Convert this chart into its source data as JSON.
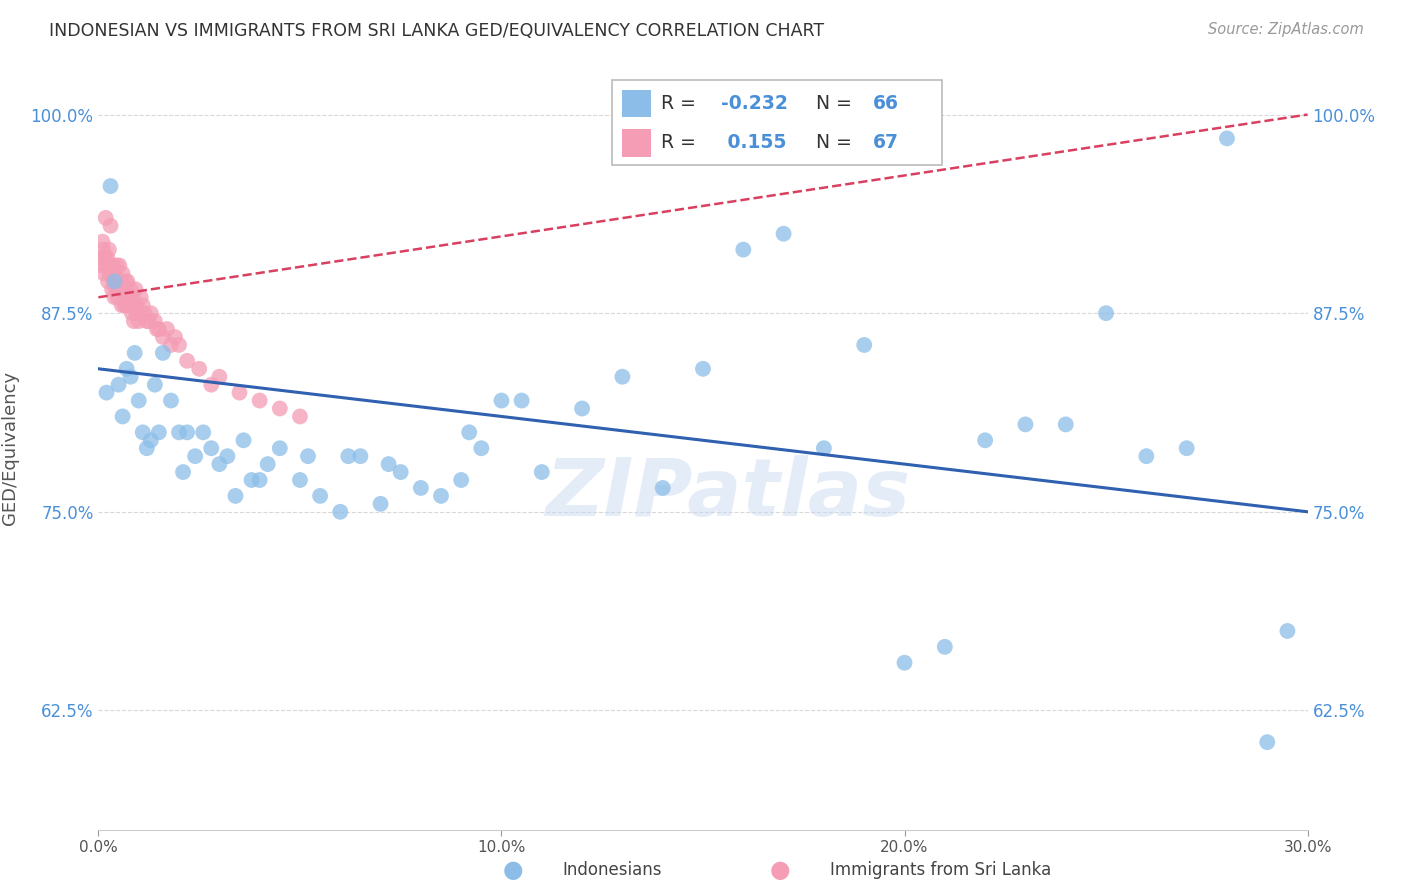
{
  "title": "INDONESIAN VS IMMIGRANTS FROM SRI LANKA GED/EQUIVALENCY CORRELATION CHART",
  "source": "Source: ZipAtlas.com",
  "ylabel": "GED/Equivalency",
  "xlabel_indonesian": "Indonesians",
  "xlabel_srilanka": "Immigrants from Sri Lanka",
  "watermark": "ZIPatlas",
  "xlim": [
    0.0,
    30.0
  ],
  "ylim": [
    55.0,
    103.0
  ],
  "y_ticks": [
    62.5,
    75.0,
    87.5,
    100.0
  ],
  "blue_R": -0.232,
  "blue_N": 66,
  "pink_R": 0.155,
  "pink_N": 67,
  "blue_color": "#8bbde8",
  "pink_color": "#f49db5",
  "blue_line_color": "#3060b0",
  "pink_line_color": "#d94060",
  "legend_border_color": "#bbbbbb",
  "grid_color": "#d8d8d8",
  "blue_line_x0": 0.0,
  "blue_line_y0": 84.0,
  "blue_line_x1": 30.0,
  "blue_line_y1": 75.0,
  "pink_line_x0": 0.0,
  "pink_line_y0": 88.5,
  "pink_line_x1": 30.0,
  "pink_line_y1": 100.0,
  "blue_x": [
    0.2,
    0.3,
    0.5,
    0.6,
    0.7,
    0.8,
    0.9,
    1.0,
    1.1,
    1.2,
    1.4,
    1.5,
    1.6,
    1.8,
    2.0,
    2.2,
    2.4,
    2.6,
    2.8,
    3.0,
    3.2,
    3.4,
    3.6,
    3.8,
    4.0,
    4.5,
    5.0,
    5.5,
    6.0,
    6.5,
    7.0,
    7.5,
    8.0,
    8.5,
    9.0,
    9.5,
    10.0,
    10.5,
    11.0,
    12.0,
    13.0,
    14.0,
    15.0,
    16.0,
    17.0,
    18.0,
    20.0,
    21.0,
    22.0,
    24.0,
    25.0,
    26.0,
    27.0,
    28.0,
    29.0,
    0.4,
    1.3,
    2.1,
    4.2,
    5.2,
    6.2,
    7.2,
    9.2,
    19.0,
    23.0,
    29.5
  ],
  "blue_y": [
    82.5,
    95.5,
    83.0,
    81.0,
    84.0,
    83.5,
    85.0,
    82.0,
    80.0,
    79.0,
    83.0,
    80.0,
    85.0,
    82.0,
    80.0,
    80.0,
    78.5,
    80.0,
    79.0,
    78.0,
    78.5,
    76.0,
    79.5,
    77.0,
    77.0,
    79.0,
    77.0,
    76.0,
    75.0,
    78.5,
    75.5,
    77.5,
    76.5,
    76.0,
    77.0,
    79.0,
    82.0,
    82.0,
    77.5,
    81.5,
    83.5,
    76.5,
    84.0,
    91.5,
    92.5,
    79.0,
    65.5,
    66.5,
    79.5,
    80.5,
    87.5,
    78.5,
    79.0,
    98.5,
    60.5,
    89.5,
    79.5,
    77.5,
    78.0,
    78.5,
    78.5,
    78.0,
    80.0,
    85.5,
    80.5,
    67.5
  ],
  "pink_x": [
    0.05,
    0.08,
    0.1,
    0.12,
    0.14,
    0.16,
    0.18,
    0.2,
    0.22,
    0.24,
    0.26,
    0.28,
    0.3,
    0.32,
    0.34,
    0.36,
    0.38,
    0.4,
    0.42,
    0.44,
    0.46,
    0.48,
    0.5,
    0.52,
    0.55,
    0.58,
    0.6,
    0.63,
    0.65,
    0.68,
    0.7,
    0.72,
    0.75,
    0.78,
    0.8,
    0.83,
    0.85,
    0.88,
    0.9,
    0.92,
    0.95,
    1.0,
    1.05,
    1.1,
    1.15,
    1.2,
    1.3,
    1.4,
    1.5,
    1.6,
    1.7,
    1.8,
    1.9,
    2.0,
    2.2,
    2.5,
    2.8,
    3.0,
    3.5,
    4.0,
    4.5,
    5.0,
    1.25,
    0.56,
    0.74,
    0.95,
    1.45
  ],
  "pink_y": [
    91.0,
    90.5,
    92.0,
    91.5,
    90.0,
    91.0,
    93.5,
    90.5,
    91.0,
    89.5,
    91.5,
    90.0,
    93.0,
    90.0,
    89.0,
    90.5,
    89.5,
    88.5,
    90.0,
    89.0,
    90.5,
    88.5,
    89.0,
    90.5,
    89.5,
    88.0,
    90.0,
    89.0,
    88.0,
    89.5,
    88.0,
    89.5,
    88.5,
    88.0,
    89.0,
    87.5,
    88.5,
    87.0,
    88.0,
    89.0,
    87.5,
    87.0,
    88.5,
    88.0,
    87.5,
    87.0,
    87.5,
    87.0,
    86.5,
    86.0,
    86.5,
    85.5,
    86.0,
    85.5,
    84.5,
    84.0,
    83.0,
    83.5,
    82.5,
    82.0,
    81.5,
    81.0,
    87.0,
    89.0,
    88.0,
    88.0,
    86.5
  ]
}
